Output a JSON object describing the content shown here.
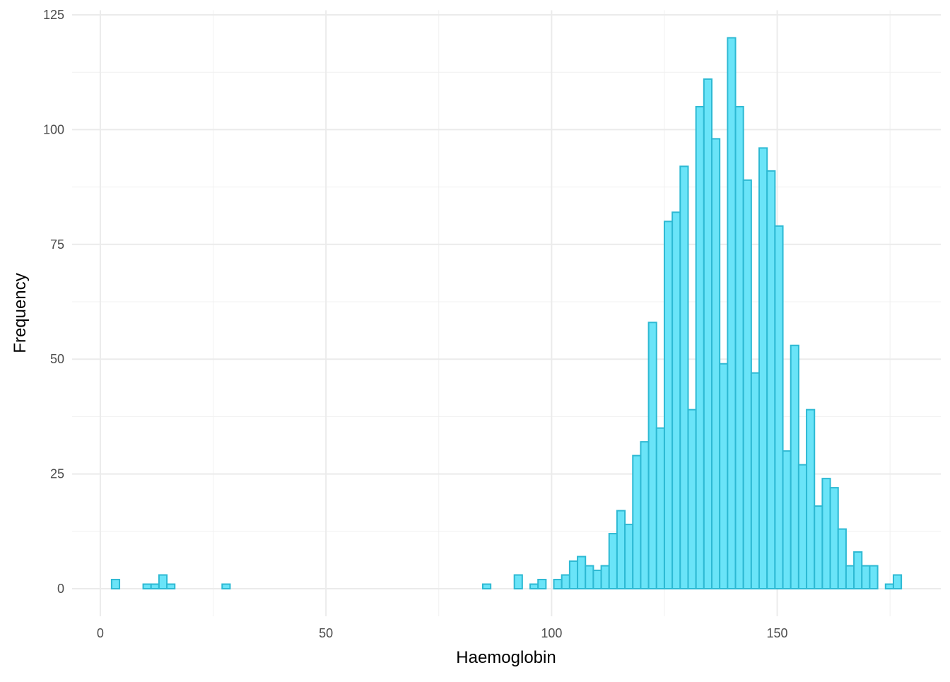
{
  "chart_data": {
    "type": "histogram",
    "x_label": "Haemoglobin",
    "y_label": "Frequency",
    "bins": [
      2.5,
      4.25,
      6,
      7.75,
      9.5,
      11.25,
      13,
      14.75,
      16.5,
      18.25,
      20,
      21.75,
      23.5,
      25.25,
      27,
      28.75,
      30.5,
      32.25,
      34,
      35.75,
      37.5,
      39.25,
      41,
      42.75,
      44.5,
      46.25,
      48,
      49.75,
      51.5,
      53.25,
      55,
      56.75,
      58.5,
      60.25,
      62,
      63.75,
      65.5,
      67.25,
      69,
      70.75,
      72.5,
      74.25,
      76,
      77.75,
      79.5,
      81.25,
      83,
      84.75,
      86.5,
      88.25,
      90,
      91.75,
      93.5,
      95.25,
      97,
      98.75,
      100.5,
      102.25,
      104,
      105.75,
      107.5,
      109.25,
      111,
      112.75,
      114.5,
      116.25,
      118,
      119.75,
      121.5,
      123.25,
      125,
      126.75,
      128.5,
      130.25,
      132,
      133.75,
      135.5,
      137.25,
      139,
      140.75,
      142.5,
      144.25,
      146,
      147.75,
      149.5,
      151.25,
      153,
      154.75,
      156.5,
      158.25,
      160,
      161.75,
      163.5,
      165.25,
      167,
      168.75,
      170.5,
      172.25,
      174,
      175.75,
      177.5
    ],
    "values": [
      2,
      0,
      0,
      0,
      1,
      1,
      3,
      1,
      0,
      0,
      0,
      0,
      0,
      0,
      1,
      0,
      0,
      0,
      0,
      0,
      0,
      0,
      0,
      0,
      0,
      0,
      0,
      0,
      0,
      0,
      0,
      0,
      0,
      0,
      0,
      0,
      0,
      0,
      0,
      0,
      0,
      0,
      0,
      0,
      0,
      0,
      0,
      1,
      0,
      0,
      0,
      3,
      0,
      1,
      2,
      0,
      2,
      3,
      6,
      7,
      5,
      4,
      5,
      12,
      17,
      14,
      29,
      32,
      58,
      35,
      80,
      82,
      92,
      39,
      105,
      111,
      98,
      49,
      120,
      105,
      89,
      47,
      96,
      91,
      79,
      30,
      53,
      27,
      39,
      18,
      24,
      22,
      13,
      5,
      8,
      5,
      5,
      0,
      1,
      3
    ],
    "color": "#6ae4f8",
    "edge_color": "#2db9d3",
    "xlim": [
      -6.25,
      186.25
    ],
    "ylim": [
      -6,
      126
    ],
    "xticks": [
      0,
      50,
      100,
      150
    ],
    "yticks": [
      0,
      25,
      50,
      75,
      100,
      125
    ],
    "grid": true
  }
}
